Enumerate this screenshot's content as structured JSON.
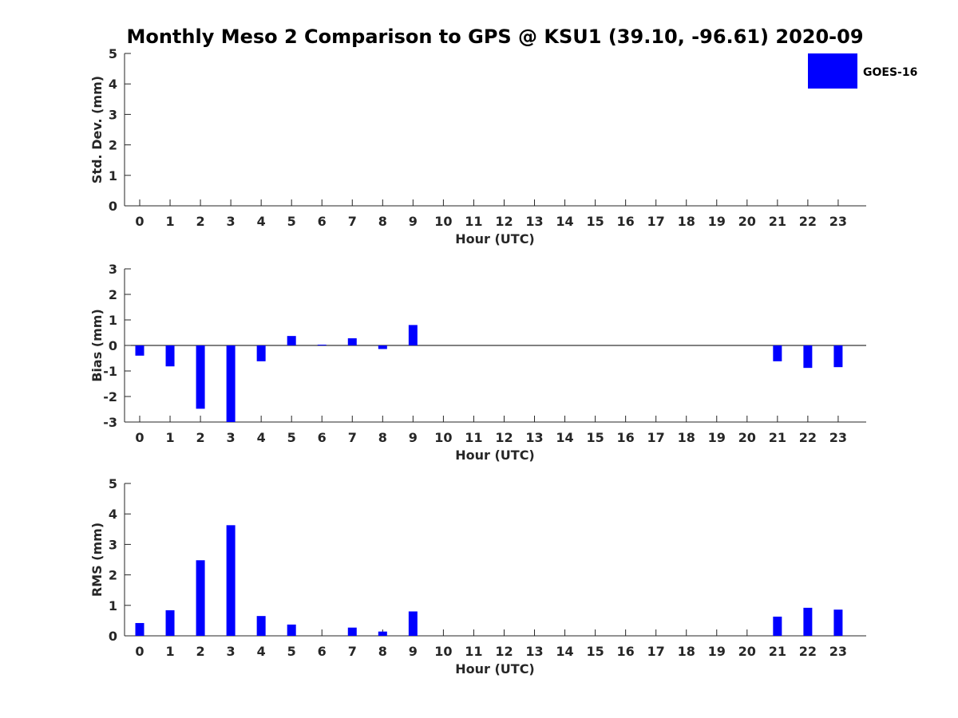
{
  "title": "Monthly Meso 2 Comparison to GPS @ KSU1 (39.10, -96.61) 2020-09",
  "legend": {
    "label": "GOES-16",
    "color": "#0000ff",
    "placement": "top-right"
  },
  "chart_data": [
    {
      "type": "bar",
      "xlabel": "Hour (UTC)",
      "ylabel": "Std. Dev. (mm)",
      "categories": [
        "0",
        "1",
        "2",
        "3",
        "4",
        "5",
        "6",
        "7",
        "8",
        "9",
        "10",
        "11",
        "12",
        "13",
        "14",
        "15",
        "16",
        "17",
        "18",
        "19",
        "20",
        "21",
        "22",
        "23"
      ],
      "ylim": [
        0,
        5
      ],
      "yticks": [
        "0",
        "1",
        "2",
        "3",
        "4",
        "5"
      ],
      "series": [
        {
          "name": "GOES-16",
          "values": [
            null,
            null,
            null,
            null,
            null,
            null,
            null,
            null,
            null,
            null,
            null,
            null,
            null,
            null,
            null,
            null,
            null,
            null,
            null,
            null,
            null,
            null,
            null,
            null
          ]
        }
      ]
    },
    {
      "type": "bar",
      "xlabel": "Hour (UTC)",
      "ylabel": "Bias (mm)",
      "categories": [
        "0",
        "1",
        "2",
        "3",
        "4",
        "5",
        "6",
        "7",
        "8",
        "9",
        "10",
        "11",
        "12",
        "13",
        "14",
        "15",
        "16",
        "17",
        "18",
        "19",
        "20",
        "21",
        "22",
        "23"
      ],
      "ylim": [
        -3,
        3
      ],
      "yticks": [
        "-3",
        "-2",
        "-1",
        "0",
        "1",
        "2",
        "3"
      ],
      "series": [
        {
          "name": "GOES-16",
          "values": [
            -0.4,
            -0.82,
            -2.48,
            -3.0,
            -0.62,
            0.37,
            0.03,
            0.28,
            -0.14,
            0.8,
            null,
            null,
            null,
            null,
            null,
            null,
            null,
            null,
            null,
            null,
            null,
            -0.62,
            -0.88,
            -0.85
          ]
        }
      ]
    },
    {
      "type": "bar",
      "xlabel": "Hour (UTC)",
      "ylabel": "RMS (mm)",
      "categories": [
        "0",
        "1",
        "2",
        "3",
        "4",
        "5",
        "6",
        "7",
        "8",
        "9",
        "10",
        "11",
        "12",
        "13",
        "14",
        "15",
        "16",
        "17",
        "18",
        "19",
        "20",
        "21",
        "22",
        "23"
      ],
      "ylim": [
        0,
        5
      ],
      "yticks": [
        "0",
        "1",
        "2",
        "3",
        "4",
        "5"
      ],
      "series": [
        {
          "name": "GOES-16",
          "values": [
            0.42,
            0.84,
            2.48,
            3.63,
            0.65,
            0.37,
            null,
            0.27,
            0.14,
            0.8,
            null,
            null,
            null,
            null,
            null,
            null,
            null,
            null,
            null,
            null,
            null,
            0.63,
            0.92,
            0.86
          ]
        }
      ]
    }
  ]
}
